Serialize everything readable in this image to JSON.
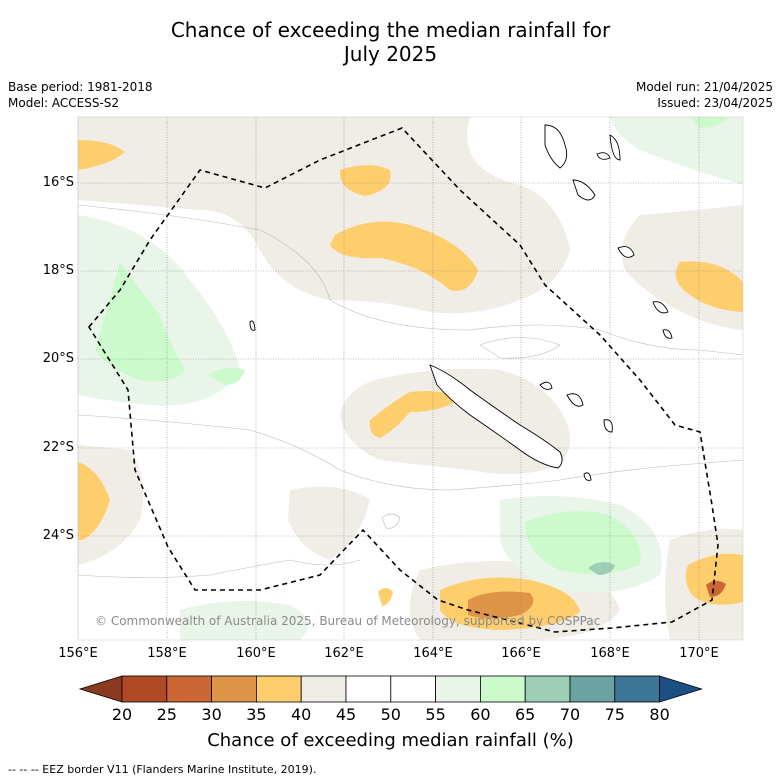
{
  "title_line1": "Chance of exceeding the median rainfall for",
  "title_line2": "July 2025",
  "meta_left": [
    "Base period: 1981-2018",
    "Model: ACCESS-S2"
  ],
  "meta_right": [
    "Model run: 21/04/2025",
    "Issued: 23/04/2025"
  ],
  "axis": {
    "lat_ticks": [
      "16°S",
      "18°S",
      "20°S",
      "22°S",
      "24°S"
    ],
    "lon_ticks": [
      "156°E",
      "158°E",
      "160°E",
      "162°E",
      "164°E",
      "166°E",
      "168°E",
      "170°E"
    ]
  },
  "copyright": "© Commonwealth of Australia 2025, Bureau of Meteorology, supported by COSPPac",
  "colorbar": {
    "labels": [
      "20",
      "25",
      "30",
      "35",
      "40",
      "45",
      "50",
      "55",
      "60",
      "65",
      "70",
      "75",
      "80"
    ],
    "colors": [
      "#8b3a20",
      "#b04a24",
      "#cc6634",
      "#e09448",
      "#fece6c",
      "#f0ece6",
      "#ffffff",
      "#ffffff",
      "#e8f5e8",
      "#ccfacc",
      "#9ccfb6",
      "#6ba3a2",
      "#3d7597",
      "#1c4f83"
    ],
    "title": "Chance of exceeding median rainfall (%)"
  },
  "footnote": "--  --  -- EEZ border V11 (Flanders Marine Institute, 2019)."
}
